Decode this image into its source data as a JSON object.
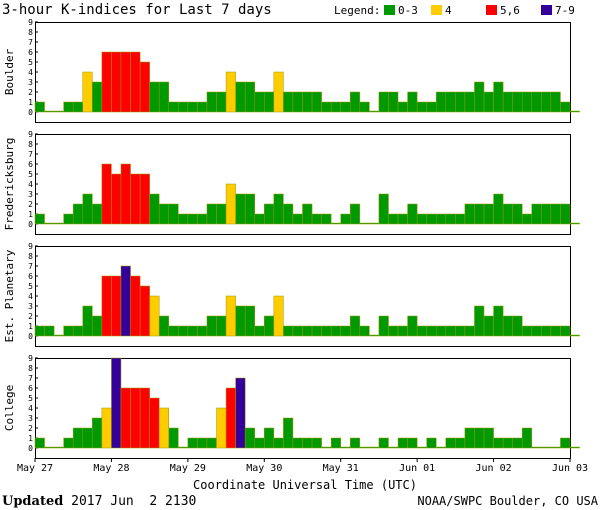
{
  "chart_data": {
    "type": "bar",
    "title": "3-hour K-indices for Last 7 days",
    "legend": {
      "label": "Legend:",
      "entries": [
        {
          "label": "0-3",
          "color": "#009900"
        },
        {
          "label": "4",
          "color": "#ffcc00"
        },
        {
          "label": "5,6",
          "color": "#ff0000"
        },
        {
          "label": "7-9",
          "color": "#330099"
        }
      ]
    },
    "ylim": [
      0,
      9
    ],
    "yticks": [
      "0",
      "1",
      "2",
      "3",
      "4",
      "5",
      "6",
      "7",
      "8",
      "9"
    ],
    "xlabel": "Coordinate Universal Time (UTC)",
    "xticks": [
      "May 27",
      "May 28",
      "May 29",
      "May 30",
      "May 31",
      "Jun 01",
      "Jun 02",
      "Jun 03"
    ],
    "series": [
      {
        "name": "Boulder",
        "values": [
          1,
          0,
          0,
          1,
          1,
          4,
          3,
          6,
          6,
          6,
          6,
          5,
          3,
          3,
          1,
          1,
          1,
          1,
          2,
          2,
          4,
          3,
          3,
          2,
          2,
          4,
          2,
          2,
          2,
          2,
          1,
          1,
          1,
          2,
          1,
          0,
          2,
          2,
          1,
          2,
          1,
          1,
          2,
          2,
          2,
          2,
          3,
          2,
          3,
          2,
          2,
          2,
          2,
          2,
          2,
          1,
          0
        ]
      },
      {
        "name": "Fredericksburg",
        "values": [
          1,
          0,
          0,
          1,
          2,
          3,
          2,
          6,
          5,
          6,
          5,
          5,
          3,
          2,
          2,
          1,
          1,
          1,
          2,
          2,
          4,
          3,
          3,
          1,
          2,
          3,
          2,
          1,
          2,
          1,
          1,
          0,
          1,
          2,
          0,
          0,
          3,
          1,
          1,
          2,
          1,
          1,
          1,
          1,
          1,
          2,
          2,
          2,
          3,
          2,
          2,
          1,
          2,
          2,
          2,
          2,
          0
        ]
      },
      {
        "name": "Est. Planetary",
        "values": [
          1,
          1,
          0,
          1,
          1,
          3,
          2,
          6,
          6,
          7,
          6,
          5,
          4,
          2,
          1,
          1,
          1,
          1,
          2,
          2,
          4,
          3,
          3,
          1,
          2,
          4,
          1,
          1,
          1,
          1,
          1,
          1,
          1,
          2,
          1,
          0,
          2,
          1,
          1,
          2,
          1,
          1,
          1,
          1,
          1,
          1,
          3,
          2,
          3,
          2,
          2,
          1,
          1,
          1,
          1,
          1,
          0
        ]
      },
      {
        "name": "College",
        "values": [
          1,
          0,
          0,
          1,
          2,
          2,
          3,
          4,
          9,
          6,
          6,
          6,
          5,
          4,
          2,
          0,
          1,
          1,
          1,
          4,
          6,
          7,
          2,
          1,
          2,
          1,
          3,
          1,
          1,
          1,
          0,
          1,
          0,
          1,
          0,
          0,
          1,
          0,
          1,
          1,
          0,
          1,
          0,
          1,
          1,
          2,
          2,
          2,
          1,
          1,
          1,
          2,
          0,
          0,
          0,
          1,
          0
        ]
      }
    ]
  },
  "footer": {
    "updated_label": "Updated",
    "updated_value": "2017 Jun  2 2130",
    "source": "NOAA/SWPC Boulder, CO USA"
  }
}
